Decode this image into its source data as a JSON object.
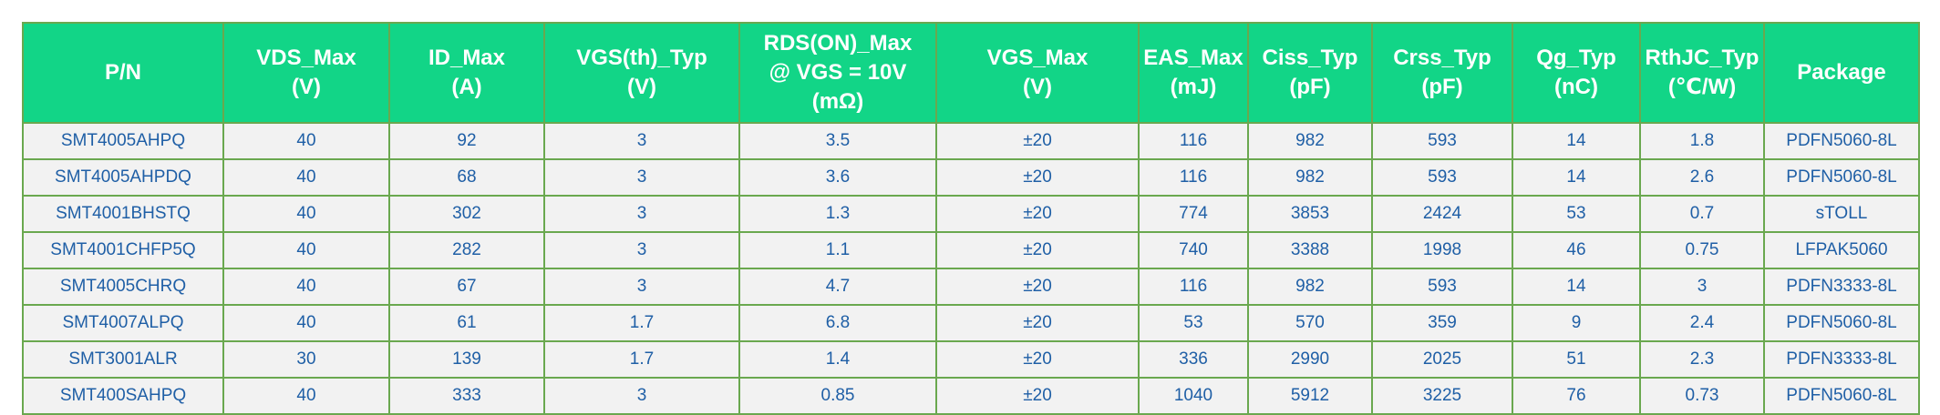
{
  "table": {
    "headers": [
      [
        "P/N"
      ],
      [
        "VDS_Max",
        "(V)"
      ],
      [
        "ID_Max",
        "(A)"
      ],
      [
        "VGS(th)_Typ",
        "(V)"
      ],
      [
        "RDS(ON)_Max",
        "@ VGS = 10V",
        "(mΩ)"
      ],
      [
        "VGS_Max",
        "(V)"
      ],
      [
        "EAS_Max",
        "(mJ)"
      ],
      [
        "Ciss_Typ",
        "(pF)"
      ],
      [
        "Crss_Typ",
        "(pF)"
      ],
      [
        "Qg_Typ",
        "(nC)"
      ],
      [
        "RthJC_Typ",
        "(℃/W)"
      ],
      [
        "Package"
      ]
    ],
    "rows": [
      [
        "SMT4005AHPQ",
        "40",
        "92",
        "3",
        "3.5",
        "±20",
        "116",
        "982",
        "593",
        "14",
        "1.8",
        "PDFN5060-8L"
      ],
      [
        "SMT4005AHPDQ",
        "40",
        "68",
        "3",
        "3.6",
        "±20",
        "116",
        "982",
        "593",
        "14",
        "2.6",
        "PDFN5060-8L"
      ],
      [
        "SMT4001BHSTQ",
        "40",
        "302",
        "3",
        "1.3",
        "±20",
        "774",
        "3853",
        "2424",
        "53",
        "0.7",
        "sTOLL"
      ],
      [
        "SMT4001CHFP5Q",
        "40",
        "282",
        "3",
        "1.1",
        "±20",
        "740",
        "3388",
        "1998",
        "46",
        "0.75",
        "LFPAK5060"
      ],
      [
        "SMT4005CHRQ",
        "40",
        "67",
        "3",
        "4.7",
        "±20",
        "116",
        "982",
        "593",
        "14",
        "3",
        "PDFN3333-8L"
      ],
      [
        "SMT4007ALPQ",
        "40",
        "61",
        "1.7",
        "6.8",
        "±20",
        "53",
        "570",
        "359",
        "9",
        "2.4",
        "PDFN5060-8L"
      ],
      [
        "SMT3001ALR",
        "30",
        "139",
        "1.7",
        "1.4",
        "±20",
        "336",
        "2990",
        "2025",
        "51",
        "2.3",
        "PDFN3333-8L"
      ],
      [
        "SMT400SAHPQ",
        "40",
        "333",
        "3",
        "0.85",
        "±20",
        "1040",
        "5912",
        "3225",
        "76",
        "0.73",
        "PDFN5060-8L"
      ]
    ]
  },
  "colors": {
    "header_bg": "#12d587",
    "header_text": "#ffffff",
    "cell_bg": "#f2f2f2",
    "cell_text": "#1f5fa6",
    "border": "#6aa84f"
  }
}
